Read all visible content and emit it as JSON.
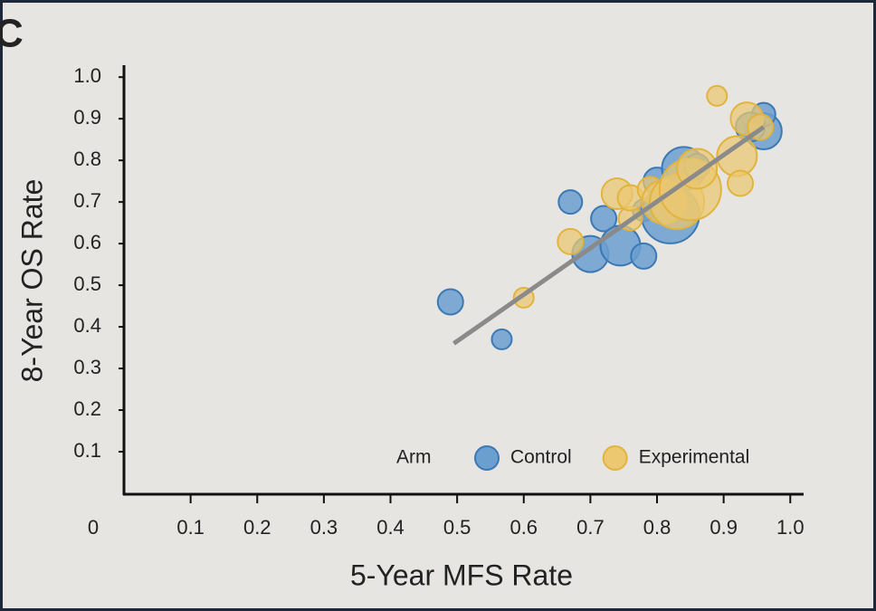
{
  "panel_label": "C",
  "chart_data": {
    "type": "scatter",
    "x_label": "5-Year MFS Rate",
    "y_label": "8-Year OS Rate",
    "xlim": [
      0,
      1.02
    ],
    "ylim": [
      0,
      1.02
    ],
    "xticks": [
      0,
      0.1,
      0.2,
      0.3,
      0.4,
      0.5,
      0.6,
      0.7,
      0.8,
      0.9,
      {
        "value": 1,
        "label": "1.0"
      }
    ],
    "yticks": [
      0.1,
      0.2,
      0.3,
      0.4,
      0.5,
      0.6,
      0.7,
      0.8,
      0.9,
      {
        "value": 1,
        "label": "1.0"
      }
    ],
    "legend_title": "Arm",
    "legend_position": "lower right",
    "series": [
      {
        "name": "Control",
        "color": "#6b9fcf",
        "edge_color": "#3b79b6",
        "x": [
          0.49,
          0.567,
          0.67,
          0.7,
          0.72,
          0.745,
          0.78,
          0.8,
          0.78,
          0.82,
          0.84,
          0.86,
          0.96,
          0.96,
          0.94
        ],
        "y": [
          0.46,
          0.37,
          0.7,
          0.575,
          0.66,
          0.595,
          0.57,
          0.75,
          0.68,
          0.67,
          0.78,
          0.785,
          0.87,
          0.91,
          0.88
        ],
        "sizes": [
          14,
          11,
          13,
          20,
          14,
          22,
          14,
          15,
          12,
          32,
          24,
          14,
          20,
          13,
          16
        ]
      },
      {
        "name": "Experimental",
        "color": "#ecc870",
        "edge_color": "#e2b43e",
        "x": [
          0.6,
          0.67,
          0.74,
          0.76,
          0.76,
          0.79,
          0.81,
          0.83,
          0.85,
          0.86,
          0.89,
          0.92,
          0.925,
          0.935,
          0.955
        ],
        "y": [
          0.47,
          0.605,
          0.72,
          0.66,
          0.71,
          0.73,
          0.7,
          0.7,
          0.73,
          0.78,
          0.955,
          0.81,
          0.745,
          0.9,
          0.88
        ],
        "sizes": [
          11,
          14,
          17,
          13,
          14,
          14,
          24,
          30,
          34,
          22,
          11,
          22,
          14,
          18,
          14
        ]
      }
    ],
    "trend_line": {
      "color": "#8a8a8a",
      "x": [
        0.495,
        0.96
      ],
      "y": [
        0.36,
        0.88
      ]
    }
  }
}
